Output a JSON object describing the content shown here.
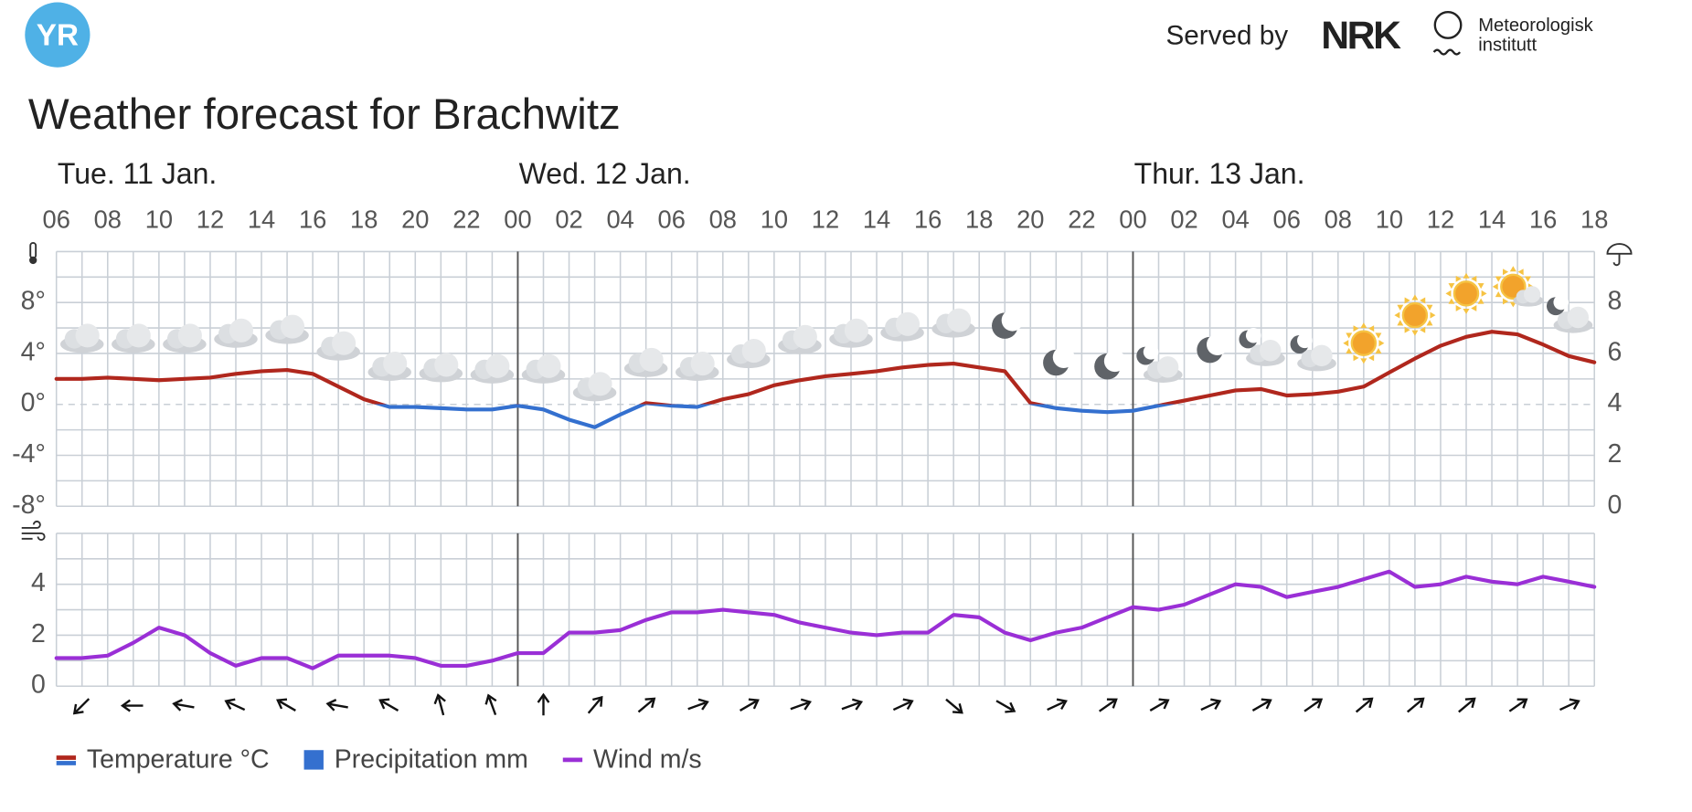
{
  "header": {
    "logo": "YR",
    "served_by": "Served by",
    "partner": "NRK",
    "institute": [
      "Meteorologisk",
      "institutt"
    ]
  },
  "chart_data": [
    {
      "type": "line",
      "title": "Weather forecast for Brachwitz",
      "days": [
        "Tue. 11 Jan.",
        "Wed. 12 Jan.",
        "Thur. 13 Jan."
      ],
      "categories": [
        "06",
        null,
        "08",
        null,
        "10",
        null,
        "12",
        null,
        "14",
        null,
        "16",
        null,
        "18",
        null,
        "20",
        null,
        "22",
        null,
        "00",
        null,
        "02",
        null,
        "04",
        null,
        "06",
        null,
        "08",
        null,
        "10",
        null,
        "12",
        null,
        "14",
        null,
        "16",
        null,
        "18",
        null,
        "20",
        null,
        "22",
        null,
        "00",
        null,
        "02",
        null,
        "04",
        null,
        "06",
        null,
        "08",
        null,
        "10",
        null,
        "12",
        null,
        "14",
        null,
        "16",
        null,
        "18"
      ],
      "series": [
        {
          "name": "Temperature °C",
          "color": "#b0271d",
          "color_below_zero": "#3470cf",
          "values": [
            2.0,
            2.0,
            2.1,
            2.0,
            1.9,
            2.0,
            2.1,
            2.4,
            2.6,
            2.7,
            2.4,
            1.4,
            0.4,
            -0.2,
            -0.2,
            -0.3,
            -0.4,
            -0.4,
            -0.1,
            -0.4,
            -1.2,
            -1.8,
            -0.8,
            0.1,
            -0.1,
            -0.2,
            0.4,
            0.8,
            1.5,
            1.9,
            2.2,
            2.4,
            2.6,
            2.9,
            3.1,
            3.2,
            2.9,
            2.6,
            0.1,
            -0.3,
            -0.5,
            -0.6,
            -0.5,
            -0.1,
            0.3,
            0.7,
            1.1,
            1.2,
            0.7,
            0.8,
            1.0,
            1.4,
            2.5,
            3.6,
            4.6,
            5.3,
            5.7,
            5.5,
            4.7,
            3.8,
            3.3
          ]
        },
        {
          "name": "Precipitation mm",
          "color": "#3470cf",
          "axis": "y2",
          "values": [
            0,
            0,
            0,
            0,
            0,
            0,
            0,
            0,
            0,
            0,
            0,
            0,
            0,
            0,
            0,
            0,
            0,
            0,
            0,
            0,
            0,
            0,
            0,
            0,
            0,
            0,
            0,
            0,
            0,
            0,
            0,
            0,
            0,
            0,
            0,
            0,
            0,
            0,
            0,
            0,
            0,
            0,
            0,
            0,
            0,
            0,
            0,
            0,
            0,
            0,
            0,
            0,
            0,
            0,
            0,
            0,
            0,
            0,
            0,
            0,
            0
          ]
        }
      ],
      "ylim": [
        -8,
        12
      ],
      "yticks": [
        {
          "value": -8,
          "label": "-8°"
        },
        {
          "value": -4,
          "label": "-4°"
        },
        {
          "value": 0,
          "label": "0°"
        },
        {
          "value": 4,
          "label": "4°"
        },
        {
          "value": 8,
          "label": "8°"
        }
      ],
      "y2lim": [
        0,
        10
      ],
      "y2ticks": [
        0,
        2,
        4,
        6,
        8
      ],
      "grid": true
    },
    {
      "type": "line",
      "series": [
        {
          "name": "Wind m/s",
          "color": "#9a2fd6",
          "values": [
            1.1,
            1.1,
            1.2,
            1.7,
            2.3,
            2.0,
            1.3,
            0.8,
            1.1,
            1.1,
            0.7,
            1.2,
            1.2,
            1.2,
            1.1,
            0.8,
            0.8,
            1.0,
            1.3,
            1.3,
            2.1,
            2.1,
            2.2,
            2.6,
            2.9,
            2.9,
            3.0,
            2.9,
            2.8,
            2.5,
            2.3,
            2.1,
            2.0,
            2.1,
            2.1,
            2.8,
            2.7,
            2.1,
            1.8,
            2.1,
            2.3,
            2.7,
            3.1,
            3.0,
            3.2,
            3.6,
            4.0,
            3.9,
            3.5,
            3.7,
            3.9,
            4.2,
            4.5,
            3.9,
            4.0,
            4.3,
            4.1,
            4.0,
            4.3,
            4.1,
            3.9
          ]
        }
      ],
      "ylim": [
        0,
        6
      ],
      "yticks": [
        0,
        2,
        4
      ],
      "grid": true
    }
  ]
}
